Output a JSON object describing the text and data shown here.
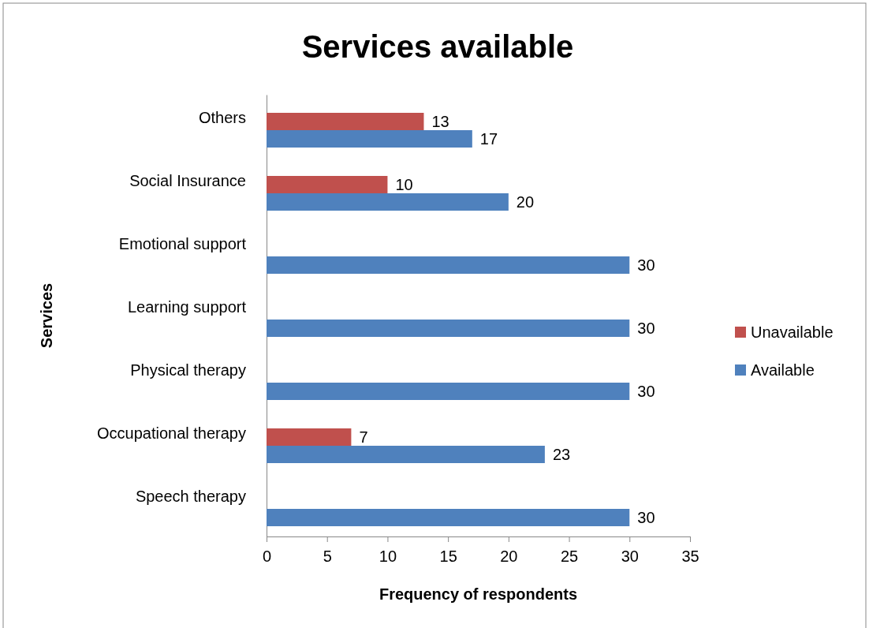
{
  "chart_data": {
    "type": "bar",
    "orientation": "horizontal",
    "title": "Services available",
    "xlabel": "Frequency of respondents",
    "ylabel": "Services",
    "categories": [
      "Others",
      "Social Insurance",
      "Emotional support",
      "Learning support",
      "Physical therapy",
      "Occupational therapy",
      "Speech therapy"
    ],
    "series": [
      {
        "name": "Unavailable",
        "color": "#c0504d",
        "values": [
          13,
          10,
          null,
          null,
          null,
          7,
          null
        ]
      },
      {
        "name": "Available",
        "color": "#4f81bd",
        "values": [
          17,
          20,
          30,
          30,
          30,
          23,
          30
        ]
      }
    ],
    "xlim": [
      0,
      35
    ],
    "xticks": [
      0,
      5,
      10,
      15,
      20,
      25,
      30,
      35
    ],
    "data_labels": true,
    "legend": "right",
    "grid": false
  }
}
